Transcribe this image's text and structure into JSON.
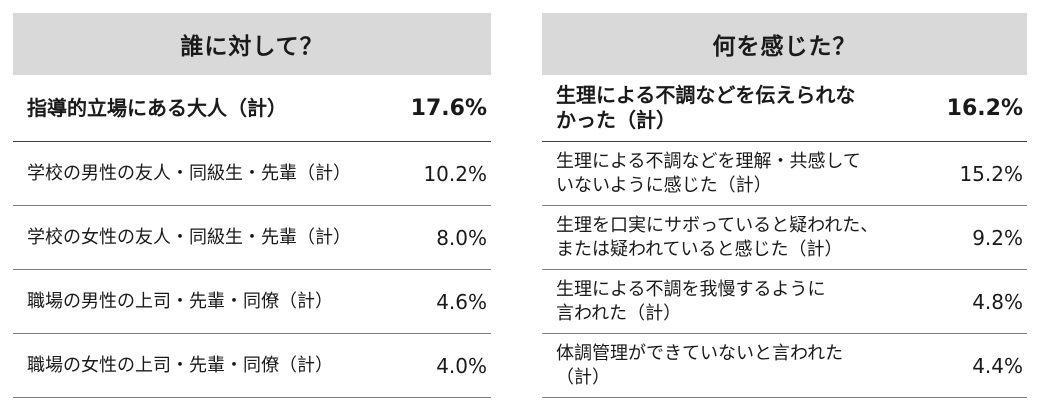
{
  "left": {
    "title": "誰に対して？",
    "rows": [
      {
        "label": "指導的立場にある大人（計）",
        "value": "17.6%"
      },
      {
        "label": "学校の男性の友人・同級生・先輩（計）",
        "value": "10.2%"
      },
      {
        "label": "学校の女性の友人・同級生・先輩（計）",
        "value": "8.0%"
      },
      {
        "label": "職場の男性の上司・先輩・同僚（計）",
        "value": "4.6%"
      },
      {
        "label": "職場の女性の上司・先輩・同僚（計）",
        "value": "4.0%"
      }
    ]
  },
  "right": {
    "title": "何を感じた？",
    "rows": [
      {
        "label": "生理による不調などを伝えられな\nかった（計）",
        "value": "16.2%"
      },
      {
        "label": "生理による不調などを理解・共感して\nいないように感じた（計）",
        "value": "15.2%"
      },
      {
        "label": "生理を口実にサボっていると疑われた、\nまたは疑われていると感じた（計）",
        "value": "9.2%"
      },
      {
        "label": "生理による不調を我慢するように\n言われた（計）",
        "value": "4.8%"
      },
      {
        "label": "体調管理ができていないと言われた\n（計）",
        "value": "4.4%"
      }
    ]
  }
}
